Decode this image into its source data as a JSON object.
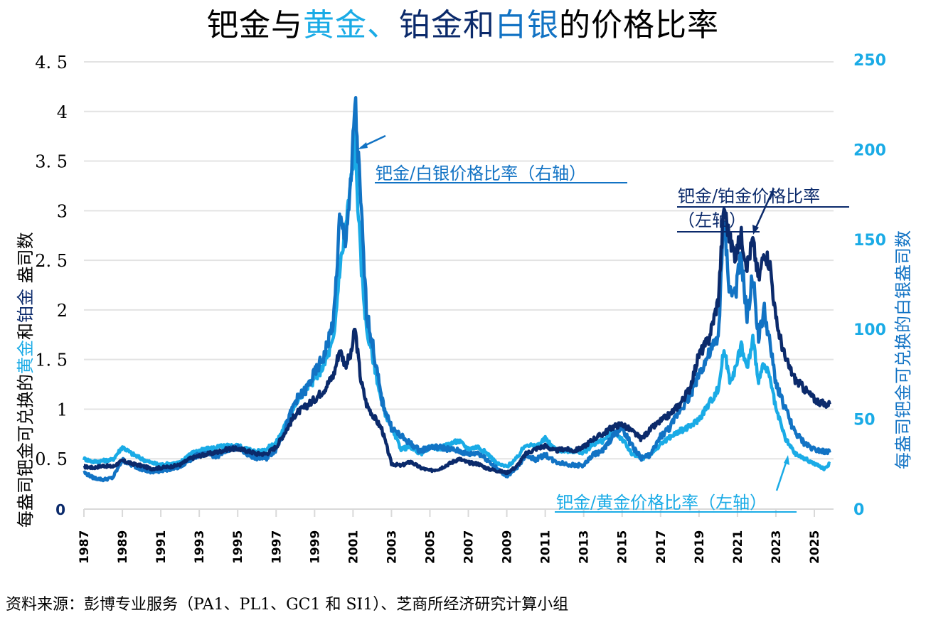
{
  "title": {
    "segments": [
      {
        "text": "钯金与",
        "color": "#000000"
      },
      {
        "text": "黄金",
        "color": "#1aabe6"
      },
      {
        "text": "、",
        "color": "#1aabe6"
      },
      {
        "text": "铂金",
        "color": "#0b2a6b"
      },
      {
        "text": "和",
        "color": "#0b2a6b"
      },
      {
        "text": "白银",
        "color": "#1273c4"
      },
      {
        "text": "的价格比率",
        "color": "#000000"
      }
    ]
  },
  "source": "资料来源：彭博专业服务（PA1、PL1、GC1 和 SI1）、芝商所经济研究计算小组",
  "colors": {
    "gold": "#1aabe6",
    "platinum": "#0b2a6b",
    "silver": "#1273c4",
    "grid": "#e3e3e3",
    "right_axis": "#1aabe6"
  },
  "chart_data": {
    "type": "line",
    "title": "钯金与黄金、铂金和白银的价格比率",
    "ylabel_left": {
      "segments": [
        {
          "text": "每盎司钯金可兑换的",
          "color": "#000000"
        },
        {
          "text": "黄金",
          "color": "#1aabe6"
        },
        {
          "text": "和",
          "color": "#000000"
        },
        {
          "text": "铂金",
          "color": "#0b2a6b"
        },
        {
          "text": " 盎司数",
          "color": "#000000"
        }
      ]
    },
    "ylabel_right": "每盎司钯金可兑换的白银盎司数",
    "left_axis": {
      "min": 0,
      "max": 4.5,
      "ticks": [
        0,
        0.5,
        1,
        1.5,
        2,
        2.5,
        3,
        3.5,
        4,
        4.5
      ],
      "tick_labels": [
        "0",
        "0.5",
        "1",
        "1.5",
        "2",
        "2.5",
        "3",
        "3.5",
        "4",
        "4.5"
      ]
    },
    "right_axis": {
      "min": 0,
      "max": 250,
      "ticks": [
        0,
        50,
        100,
        150,
        200,
        250
      ],
      "tick_labels": [
        "0",
        "50",
        "100",
        "150",
        "200",
        "250"
      ]
    },
    "x_axis": {
      "min": 1987,
      "max": 2025.9,
      "tick_labels": [
        "1987",
        "1989",
        "1991",
        "1993",
        "1995",
        "1997",
        "1999",
        "2001",
        "2003",
        "2005",
        "2007",
        "2009",
        "2011",
        "2013",
        "2015",
        "2017",
        "2019",
        "2021",
        "2023",
        "2025"
      ]
    },
    "grid": true,
    "x": [
      1987.0,
      1987.5,
      1988.0,
      1988.5,
      1989.0,
      1989.5,
      1990.0,
      1990.5,
      1991.0,
      1991.5,
      1992.0,
      1992.5,
      1993.0,
      1993.5,
      1994.0,
      1994.5,
      1995.0,
      1995.5,
      1996.0,
      1996.5,
      1997.0,
      1997.5,
      1998.0,
      1998.5,
      1999.0,
      1999.5,
      2000.0,
      2000.3,
      2000.6,
      2000.9,
      2001.1,
      2001.4,
      2001.7,
      2002.0,
      2002.5,
      2003.0,
      2003.5,
      2004.0,
      2004.5,
      2005.0,
      2005.5,
      2006.0,
      2006.5,
      2007.0,
      2007.5,
      2008.0,
      2008.5,
      2009.0,
      2009.5,
      2010.0,
      2010.5,
      2011.0,
      2011.5,
      2012.0,
      2012.5,
      2013.0,
      2013.5,
      2014.0,
      2014.5,
      2015.0,
      2015.5,
      2016.0,
      2016.5,
      2017.0,
      2017.5,
      2018.0,
      2018.5,
      2019.0,
      2019.5,
      2020.0,
      2020.3,
      2020.6,
      2020.9,
      2021.2,
      2021.5,
      2021.8,
      2022.1,
      2022.4,
      2022.7,
      2023.0,
      2023.5,
      2024.0,
      2024.5,
      2025.0,
      2025.5,
      2025.8
    ],
    "series": [
      {
        "name": "钯金/铂金价格比率（左轴）",
        "axis": "left",
        "color": "#0b2a6b",
        "values": [
          0.42,
          0.41,
          0.43,
          0.42,
          0.48,
          0.45,
          0.43,
          0.4,
          0.41,
          0.42,
          0.44,
          0.5,
          0.53,
          0.55,
          0.57,
          0.6,
          0.6,
          0.58,
          0.55,
          0.55,
          0.62,
          0.78,
          0.95,
          1.02,
          1.1,
          1.2,
          1.35,
          1.6,
          1.45,
          1.55,
          1.82,
          1.3,
          1.05,
          0.95,
          0.8,
          0.45,
          0.43,
          0.47,
          0.41,
          0.38,
          0.4,
          0.45,
          0.5,
          0.46,
          0.45,
          0.4,
          0.38,
          0.36,
          0.42,
          0.55,
          0.6,
          0.63,
          0.58,
          0.6,
          0.58,
          0.62,
          0.7,
          0.75,
          0.82,
          0.85,
          0.78,
          0.7,
          0.8,
          0.88,
          0.95,
          1.05,
          1.2,
          1.55,
          1.7,
          2.1,
          3.05,
          2.7,
          2.55,
          2.75,
          2.45,
          2.7,
          2.3,
          2.6,
          2.45,
          1.9,
          1.5,
          1.3,
          1.2,
          1.1,
          1.05,
          1.05
        ]
      },
      {
        "name": "钯金/黄金价格比率（左轴）",
        "axis": "left",
        "color": "#1aabe6",
        "values": [
          0.5,
          0.47,
          0.48,
          0.49,
          0.62,
          0.55,
          0.5,
          0.46,
          0.44,
          0.45,
          0.46,
          0.55,
          0.58,
          0.6,
          0.62,
          0.63,
          0.63,
          0.6,
          0.57,
          0.6,
          0.66,
          0.85,
          1.05,
          1.2,
          1.3,
          1.45,
          1.7,
          2.4,
          2.8,
          3.3,
          3.7,
          2.5,
          1.8,
          1.55,
          1.05,
          0.8,
          0.6,
          0.62,
          0.55,
          0.62,
          0.6,
          0.65,
          0.68,
          0.6,
          0.62,
          0.55,
          0.45,
          0.42,
          0.5,
          0.65,
          0.62,
          0.7,
          0.6,
          0.58,
          0.58,
          0.56,
          0.65,
          0.68,
          0.78,
          0.7,
          0.55,
          0.5,
          0.55,
          0.65,
          0.72,
          0.78,
          0.82,
          0.9,
          1.05,
          1.2,
          1.6,
          1.3,
          1.4,
          1.65,
          1.4,
          1.7,
          1.3,
          1.45,
          1.3,
          1.0,
          0.7,
          0.55,
          0.5,
          0.45,
          0.4,
          0.45
        ]
      },
      {
        "name": "钯金/白银价格比率（右轴）",
        "axis": "right",
        "color": "#1273c4",
        "values": [
          20,
          17,
          16,
          17,
          27,
          24,
          22,
          20,
          21,
          22,
          23,
          27,
          30,
          30,
          29,
          33,
          34,
          30,
          28,
          28,
          33,
          45,
          60,
          65,
          75,
          85,
          105,
          160,
          150,
          180,
          228,
          170,
          110,
          92,
          60,
          45,
          40,
          36,
          32,
          34,
          34,
          33,
          32,
          30,
          31,
          27,
          22,
          18,
          22,
          30,
          27,
          30,
          26,
          25,
          24,
          24,
          30,
          32,
          40,
          45,
          35,
          28,
          30,
          40,
          45,
          55,
          62,
          75,
          85,
          95,
          160,
          120,
          120,
          140,
          105,
          130,
          95,
          110,
          90,
          70,
          55,
          42,
          36,
          33,
          32,
          31
        ]
      }
    ],
    "annotations": [
      {
        "text": "钯金/白银价格比率（右轴）",
        "color": "#1273c4",
        "target_series": "钯金/白银价格比率（右轴）"
      },
      {
        "text_line1": "钯金/铂金价格比率",
        "text_line2": "（左轴）",
        "color": "#0b2a6b",
        "target_series": "钯金/铂金价格比率（左轴）"
      },
      {
        "text": "钯金/黄金价格比率（左轴）",
        "color": "#1aabe6",
        "target_series": "钯金/黄金价格比率（左轴）"
      }
    ]
  }
}
